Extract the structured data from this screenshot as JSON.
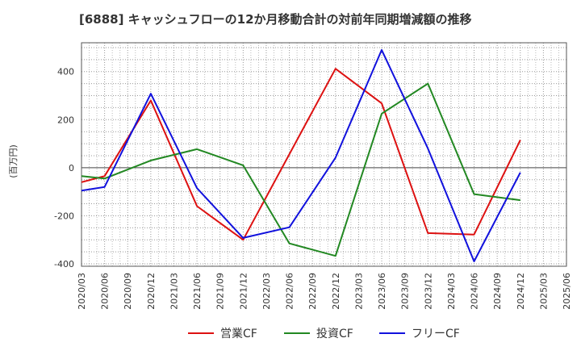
{
  "chart_data": {
    "type": "line",
    "title": "[6888]  キャッシュフローの12か月移動合計の対前年同期増減額の推移",
    "xlabel": "",
    "ylabel": "(百万円)",
    "ylim": [
      -410,
      520
    ],
    "yticks": [
      -400,
      -200,
      0,
      200,
      400
    ],
    "grid": true,
    "legend_position": "bottom-center",
    "x": [
      "2020/03",
      "2020/06",
      "2020/09",
      "2020/12",
      "2021/03",
      "2021/06",
      "2021/09",
      "2021/12",
      "2022/03",
      "2022/06",
      "2022/09",
      "2022/12",
      "2023/03",
      "2023/06",
      "2023/09",
      "2023/12",
      "2024/03",
      "2024/06",
      "2024/09",
      "2024/12",
      "2025/03",
      "2025/06"
    ],
    "series": [
      {
        "name": "営業CF",
        "color": "#dd1111",
        "values": [
          -60,
          -35,
          null,
          280,
          null,
          -160,
          null,
          -300,
          null,
          null,
          null,
          412,
          null,
          268,
          null,
          -272,
          null,
          -278,
          null,
          115,
          null,
          null
        ]
      },
      {
        "name": "投資CF",
        "color": "#228822",
        "values": [
          -35,
          -45,
          null,
          30,
          null,
          77,
          null,
          10,
          null,
          -315,
          null,
          -367,
          null,
          225,
          null,
          350,
          null,
          -110,
          null,
          -135,
          null,
          null
        ]
      },
      {
        "name": "フリーCF",
        "color": "#1111dd",
        "values": [
          -95,
          -80,
          null,
          308,
          null,
          -85,
          null,
          -292,
          null,
          -248,
          null,
          42,
          null,
          490,
          null,
          80,
          null,
          -390,
          null,
          -20,
          null,
          null
        ]
      }
    ]
  }
}
